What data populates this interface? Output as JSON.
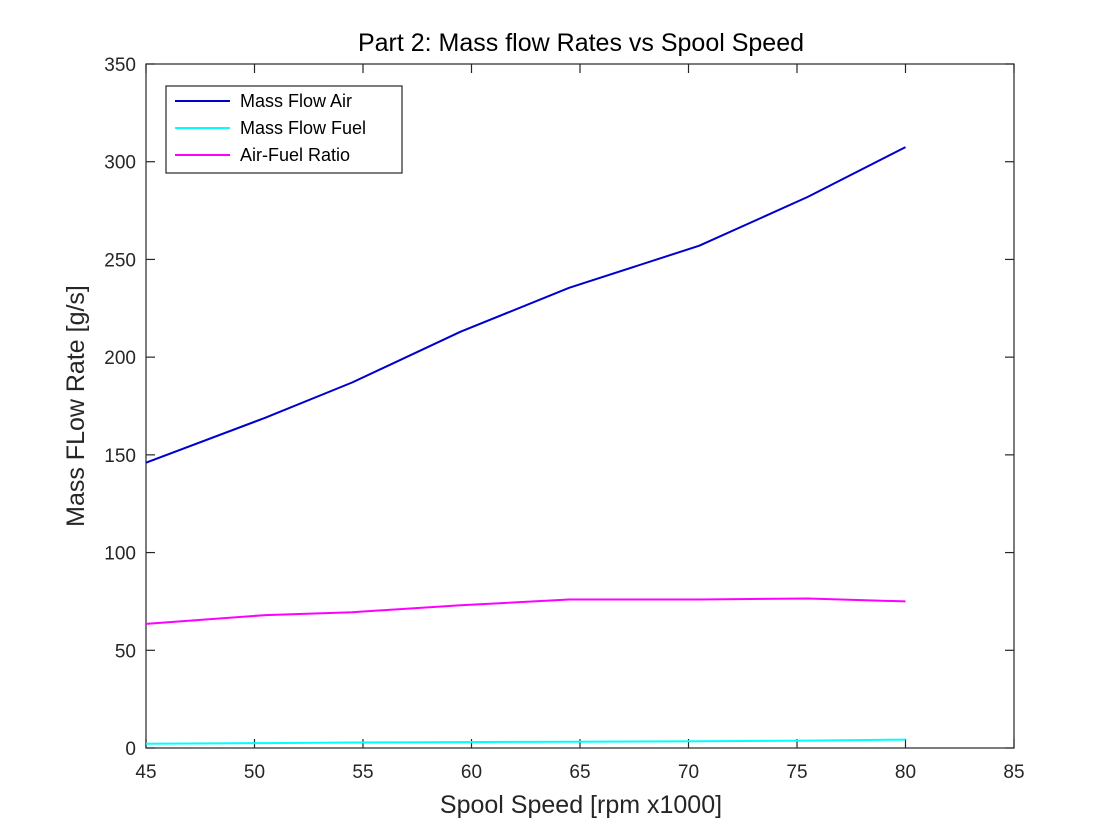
{
  "chart_data": {
    "type": "line",
    "title": "Part 2: Mass flow Rates vs Spool Speed",
    "xlabel": "Spool Speed [rpm x1000]",
    "ylabel": "Mass FLow Rate [g/s]",
    "xlim": [
      45,
      85
    ],
    "ylim": [
      0,
      350
    ],
    "xticks": [
      "45",
      "50",
      "55",
      "60",
      "65",
      "70",
      "75",
      "80",
      "85"
    ],
    "yticks": [
      "0",
      "50",
      "100",
      "150",
      "200",
      "250",
      "300",
      "350"
    ],
    "grid": false,
    "legend_position": "top-left",
    "series": [
      {
        "name": "Mass Flow Air",
        "color": "#0000cc",
        "x": [
          45,
          50.5,
          54.5,
          59.5,
          64.5,
          70.5,
          75.5,
          80
        ],
        "y": [
          146,
          169,
          187,
          213,
          235.5,
          257,
          282,
          307.5
        ]
      },
      {
        "name": "Mass Flow Fuel",
        "color": "#00ffff",
        "x": [
          45,
          50.5,
          54.5,
          59.5,
          64.5,
          70.5,
          75.5,
          80
        ],
        "y": [
          2.2,
          2.5,
          2.8,
          3.0,
          3.2,
          3.5,
          3.8,
          4.3
        ]
      },
      {
        "name": "Air-Fuel Ratio",
        "color": "#ff00ff",
        "x": [
          45,
          50.5,
          54.5,
          59.5,
          64.5,
          70.5,
          75.5,
          80
        ],
        "y": [
          63.5,
          68,
          69.5,
          73,
          76,
          76,
          76.5,
          75
        ]
      }
    ]
  }
}
